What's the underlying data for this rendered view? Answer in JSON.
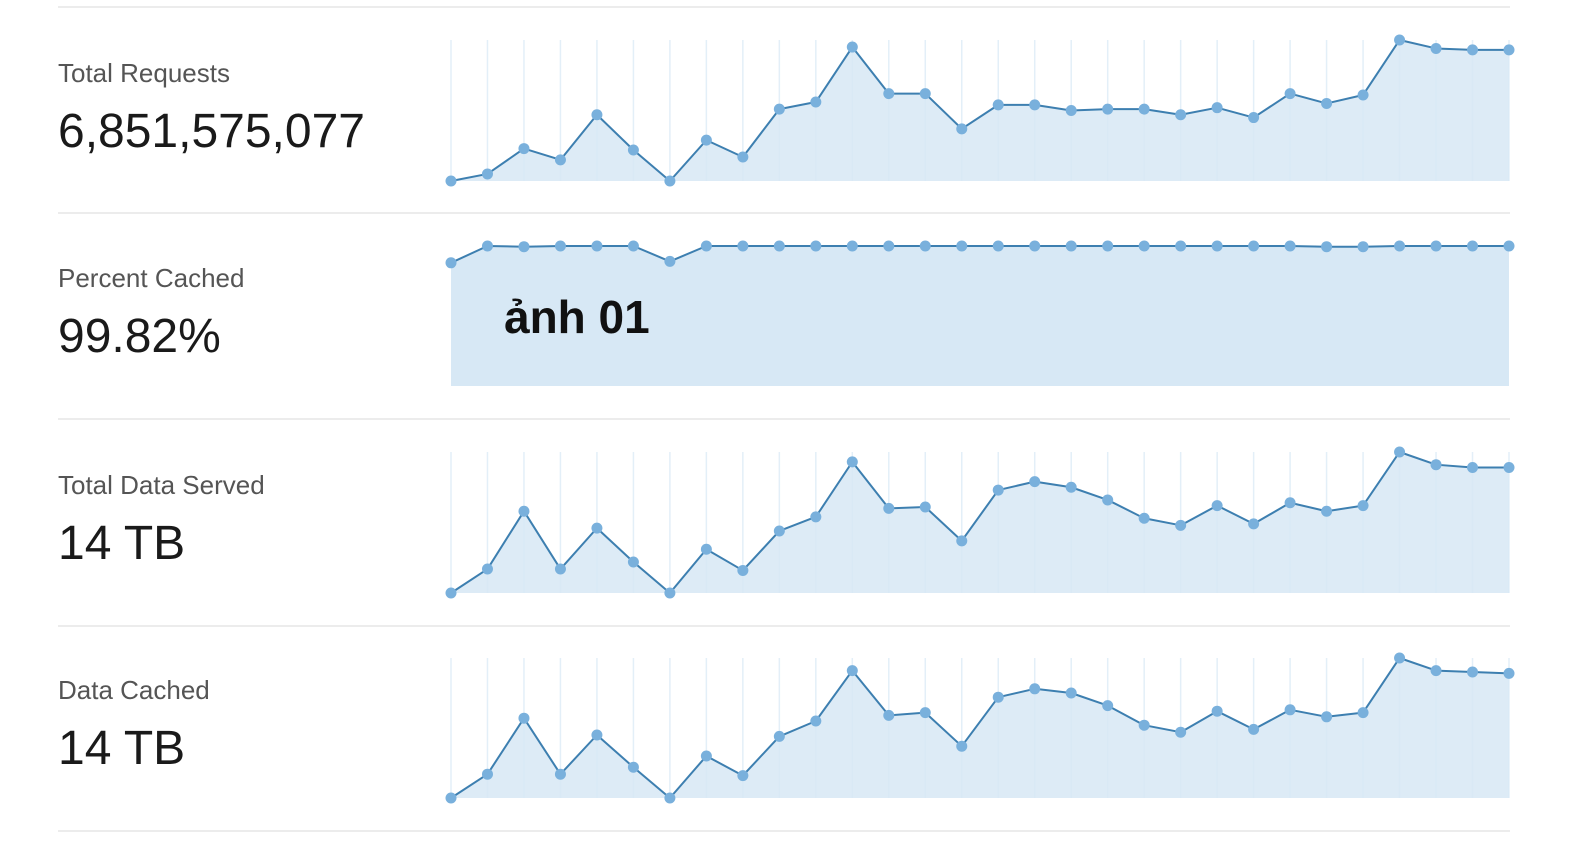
{
  "colors": {
    "line": "#3d7fb0",
    "marker": "#79b0dc",
    "fill": "#d7e8f5",
    "gridline": "#e3eff8",
    "divider": "#ececec"
  },
  "overlay": {
    "caption": "ảnh 01"
  },
  "metrics": [
    {
      "label": "Total Requests",
      "value": "6,851,575,077"
    },
    {
      "label": "Percent Cached",
      "value": "99.82%"
    },
    {
      "label": "Total Data Served",
      "value": "14 TB"
    },
    {
      "label": "Data Cached",
      "value": "14 TB"
    }
  ],
  "chart_data": [
    {
      "type": "area",
      "markers": true,
      "grid": "vertical",
      "ylim": [
        0,
        100
      ],
      "x": [
        1,
        2,
        3,
        4,
        5,
        6,
        7,
        8,
        9,
        10,
        11,
        12,
        13,
        14,
        15,
        16,
        17,
        18,
        19,
        20,
        21,
        22,
        23,
        24,
        25,
        26,
        27,
        28,
        29,
        30
      ],
      "values": [
        0,
        5,
        23,
        15,
        47,
        22,
        0,
        29,
        17,
        51,
        56,
        95,
        62,
        62,
        37,
        54,
        54,
        50,
        51,
        51,
        47,
        52,
        45,
        62,
        55,
        61,
        100,
        94,
        93,
        93
      ]
    },
    {
      "type": "area",
      "markers": true,
      "grid": "none",
      "ylim": [
        0,
        100
      ],
      "x": [
        1,
        2,
        3,
        4,
        5,
        6,
        7,
        8,
        9,
        10,
        11,
        12,
        13,
        14,
        15,
        16,
        17,
        18,
        19,
        20,
        21,
        22,
        23,
        24,
        25,
        26,
        27,
        28,
        29,
        30
      ],
      "values": [
        88,
        100,
        99.5,
        100,
        100,
        100,
        89,
        100,
        100,
        100,
        100,
        100,
        100,
        100,
        100,
        100,
        100,
        100,
        100,
        100,
        100,
        100,
        100,
        100,
        99.5,
        99.5,
        100,
        100,
        100,
        100
      ]
    },
    {
      "type": "area",
      "markers": true,
      "grid": "vertical",
      "ylim": [
        0,
        100
      ],
      "x": [
        1,
        2,
        3,
        4,
        5,
        6,
        7,
        8,
        9,
        10,
        11,
        12,
        13,
        14,
        15,
        16,
        17,
        18,
        19,
        20,
        21,
        22,
        23,
        24,
        25,
        26,
        27,
        28,
        29,
        30
      ],
      "values": [
        0,
        17,
        58,
        17,
        46,
        22,
        0,
        31,
        16,
        44,
        54,
        93,
        60,
        61,
        37,
        73,
        79,
        75,
        66,
        53,
        48,
        62,
        49,
        64,
        58,
        62,
        100,
        91,
        89,
        89
      ]
    },
    {
      "type": "area",
      "markers": true,
      "grid": "vertical",
      "ylim": [
        0,
        100
      ],
      "x": [
        1,
        2,
        3,
        4,
        5,
        6,
        7,
        8,
        9,
        10,
        11,
        12,
        13,
        14,
        15,
        16,
        17,
        18,
        19,
        20,
        21,
        22,
        23,
        24,
        25,
        26,
        27,
        28,
        29,
        30
      ],
      "values": [
        0,
        17,
        57,
        17,
        45,
        22,
        0,
        30,
        16,
        44,
        55,
        91,
        59,
        61,
        37,
        72,
        78,
        75,
        66,
        52,
        47,
        62,
        49,
        63,
        58,
        61,
        100,
        91,
        90,
        89
      ]
    }
  ]
}
